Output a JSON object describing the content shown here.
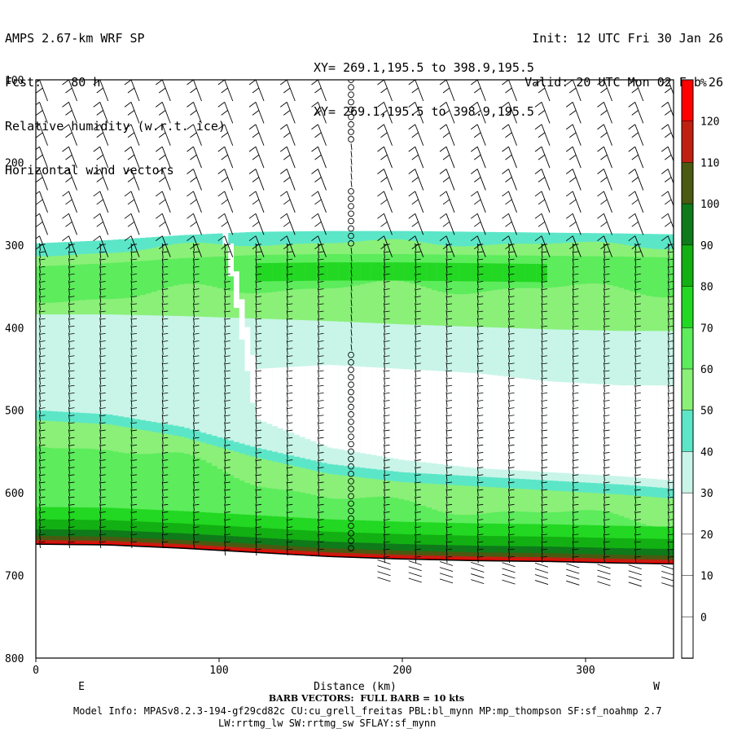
{
  "header": {
    "line1_left": "AMPS 2.67-km WRF SP",
    "line2_left": "Fcst:    80 h",
    "line3_left": "Relative humidity (w.r.t. ice)",
    "line4_left": "Horizontal wind vectors",
    "line3_mid": "XY= 269.1,195.5 to 398.9,195.5",
    "line4_mid": "XY= 269.1,195.5 to 398.9,195.5",
    "line1_right": "Init: 12 UTC Fri 30 Jan 26",
    "line2_right": "Valid: 20 UTC Mon 02 Feb 26"
  },
  "footer": {
    "barb_note": "BARB VECTORS:  FULL BARB = 10 kts",
    "model_info": "Model Info: MPASv8.2.3-194-gf29cd82c CU:cu_grell_freitas PBL:bl_mynn MP:mp_thompson SF:sf_noahmp 2.7",
    "model_info2": "LW:rrtmg_lw SW:rrtmg_sw SFLAY:sf_mynn"
  },
  "chart_data": {
    "type": "heatmap",
    "title": "Relative humidity (w.r.t. ice)",
    "xlabel": "Distance (km)",
    "ylabel": "",
    "xlim": [
      0,
      348
    ],
    "ylim": [
      800,
      100
    ],
    "x_ticks": [
      0,
      100,
      200,
      300
    ],
    "y_ticks": [
      100,
      200,
      300,
      400,
      500,
      600,
      700,
      800
    ],
    "x_end_labels": {
      "left": "E",
      "right": "W"
    },
    "colorbar": {
      "unit": "%",
      "levels": [
        0,
        10,
        20,
        30,
        40,
        50,
        60,
        70,
        80,
        90,
        100,
        110,
        120
      ],
      "colors": [
        "#ffffff",
        "#ffffff",
        "#ffffff",
        "#ffffff",
        "#c8f5e8",
        "#5ce6c8",
        "#8af078",
        "#5cec5c",
        "#22d822",
        "#12b012",
        "#0e7a1a",
        "#4a5a10",
        "#c02010",
        "#ff0000"
      ]
    },
    "rh_bands_by_x": {
      "x": [
        0,
        40,
        80,
        120,
        160,
        200,
        240,
        280,
        320,
        348
      ],
      "terrain_pressure": [
        662,
        663,
        667,
        672,
        677,
        680,
        682,
        683,
        685,
        686
      ],
      "rh_top_pressure": [
        298,
        294,
        288,
        284,
        283,
        283,
        284,
        285,
        286,
        287
      ],
      "rh40_top": [
        390,
        390,
        392,
        395,
        398,
        402,
        405,
        408,
        410,
        410
      ],
      "rh40_bottom": [
        500,
        505,
        520,
        545,
        565,
        575,
        580,
        585,
        590,
        595
      ],
      "rh30_top": [
        0,
        0,
        0,
        450,
        445,
        450,
        455,
        465,
        470,
        470
      ],
      "rh30_bottom": [
        0,
        0,
        0,
        510,
        545,
        560,
        570,
        575,
        580,
        585
      ]
    },
    "barb_columns_x_km": [
      2,
      18,
      35,
      52,
      69,
      86,
      103,
      120,
      137,
      154,
      172,
      190,
      207,
      224,
      241,
      258,
      276,
      293,
      310,
      327,
      345
    ]
  }
}
